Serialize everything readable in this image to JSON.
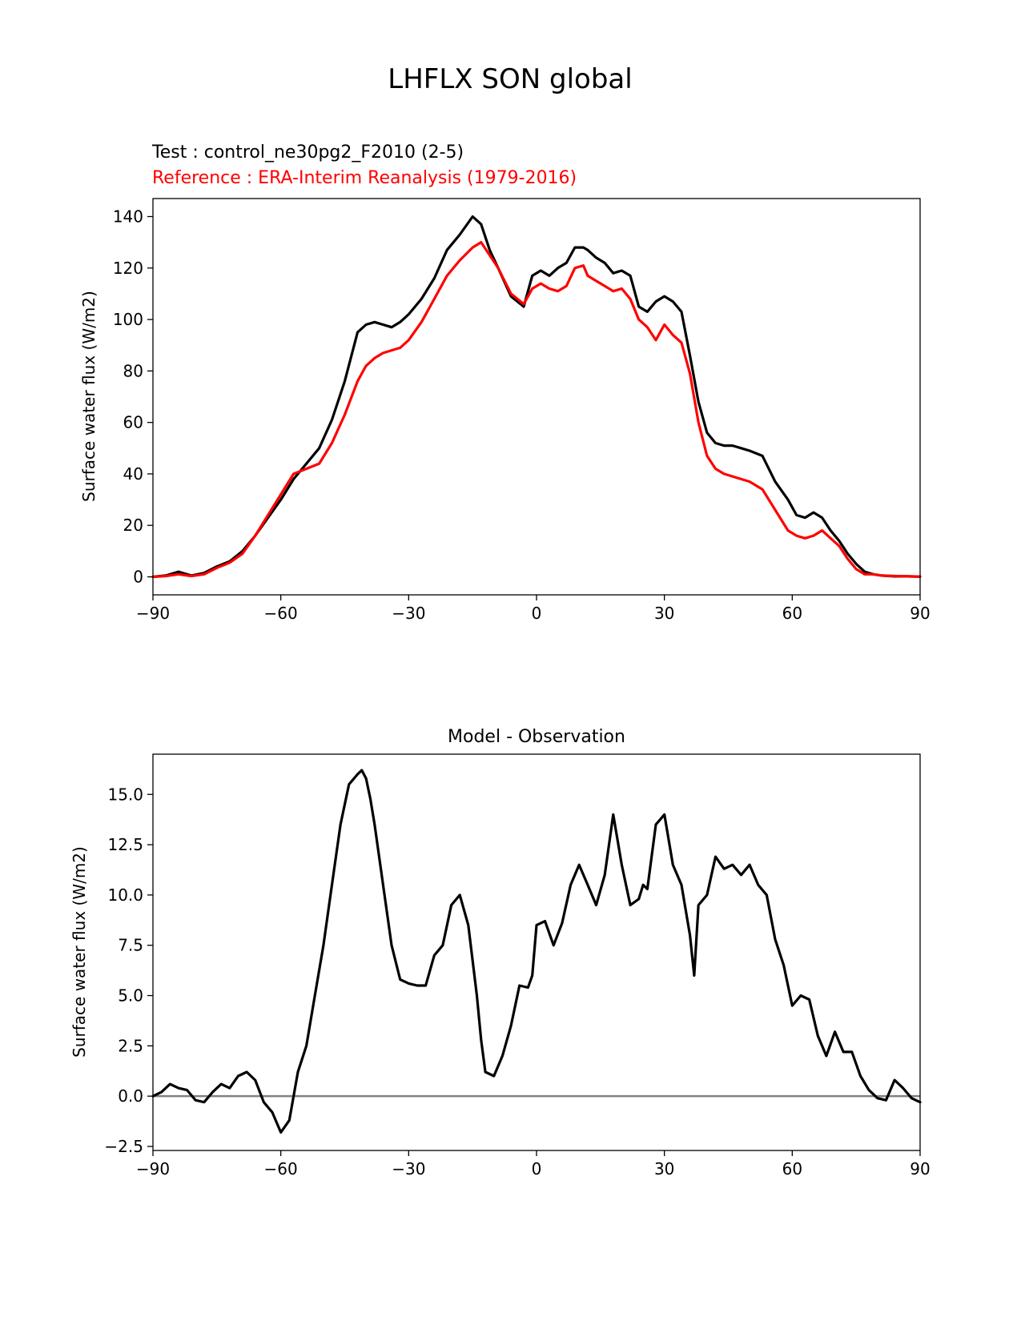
{
  "figure_title": "LHFLX SON global",
  "colors": {
    "test": "#000000",
    "reference": "#ff0000",
    "zero_line": "#808080"
  },
  "chart_data": [
    {
      "type": "line",
      "test_label": "Test : control_ne30pg2_F2010 (2-5)",
      "reference_label": "Reference : ERA-Interim Reanalysis (1979-2016)",
      "xlabel": "",
      "ylabel": "Surface water flux (W/m2)",
      "xlim": [
        -90,
        90
      ],
      "ylim": [
        -7,
        147
      ],
      "xticks": [
        -90,
        -60,
        -30,
        0,
        30,
        60,
        90
      ],
      "xtick_labels": [
        "−90",
        "−60",
        "−30",
        "0",
        "30",
        "60",
        "90"
      ],
      "yticks": [
        0,
        20,
        40,
        60,
        80,
        100,
        120,
        140
      ],
      "ytick_labels": [
        "0",
        "20",
        "40",
        "60",
        "80",
        "100",
        "120",
        "140"
      ],
      "series": [
        {
          "name": "Test",
          "color": "#000000",
          "x": [
            -90,
            -87,
            -84,
            -81,
            -78,
            -75,
            -72,
            -69,
            -66,
            -63,
            -60,
            -57,
            -54,
            -51,
            -48,
            -45,
            -42,
            -40,
            -38,
            -36,
            -34,
            -32,
            -30,
            -27,
            -24,
            -21,
            -18,
            -15,
            -13,
            -11,
            -9,
            -6,
            -3,
            -1,
            1,
            3,
            5,
            7,
            9,
            11,
            12,
            14,
            16,
            18,
            20,
            22,
            24,
            26,
            28,
            30,
            32,
            34,
            36,
            38,
            40,
            42,
            44,
            46,
            48,
            50,
            53,
            56,
            59,
            61,
            63,
            65,
            67,
            69,
            71,
            73,
            75,
            77,
            79,
            81,
            84,
            87,
            90
          ],
          "values": [
            0,
            0.5,
            2,
            0.5,
            1.5,
            4,
            6,
            10,
            16,
            23,
            30,
            38,
            44,
            50,
            61,
            76,
            95,
            98,
            99,
            98,
            97,
            99,
            102,
            108,
            116,
            127,
            133,
            140,
            137,
            127,
            120,
            109,
            105,
            117,
            119,
            117,
            120,
            122,
            128,
            128,
            127,
            124,
            122,
            118,
            119,
            117,
            105,
            103,
            107,
            109,
            107,
            103,
            86,
            68,
            56,
            52,
            51,
            51,
            50,
            49,
            47,
            37,
            30,
            24,
            23,
            25,
            23,
            18,
            14,
            9,
            5,
            2,
            1,
            0.5,
            0.2,
            0.2,
            0.1
          ]
        },
        {
          "name": "Reference",
          "color": "#ff0000",
          "x": [
            -90,
            -87,
            -84,
            -81,
            -78,
            -75,
            -72,
            -69,
            -66,
            -63,
            -60,
            -57,
            -54,
            -51,
            -48,
            -45,
            -42,
            -40,
            -38,
            -36,
            -34,
            -32,
            -30,
            -27,
            -24,
            -21,
            -18,
            -15,
            -13,
            -11,
            -9,
            -6,
            -3,
            -1,
            1,
            3,
            5,
            7,
            9,
            11,
            12,
            14,
            16,
            18,
            20,
            22,
            24,
            26,
            28,
            30,
            32,
            34,
            36,
            38,
            40,
            42,
            44,
            46,
            48,
            50,
            53,
            56,
            59,
            61,
            63,
            65,
            67,
            69,
            71,
            73,
            75,
            77,
            79,
            81,
            84,
            87,
            90
          ],
          "values": [
            0,
            0.3,
            1,
            0.3,
            1,
            3.5,
            5.5,
            9,
            16,
            24,
            32,
            40,
            42,
            44,
            52,
            63,
            76,
            82,
            85,
            87,
            88,
            89,
            92,
            99,
            108,
            117,
            123,
            128,
            130,
            125,
            120,
            110,
            106,
            112,
            114,
            112,
            111,
            113,
            120,
            121,
            117,
            115,
            113,
            111,
            112,
            108,
            100,
            97,
            92,
            98,
            94,
            91,
            79,
            60,
            47,
            42,
            40,
            39,
            38,
            37,
            34,
            26,
            18,
            16,
            15,
            16,
            18,
            15,
            12,
            7,
            3,
            1,
            1,
            0.5,
            0.3,
            0.2,
            0.1
          ]
        }
      ]
    },
    {
      "type": "line",
      "title": "Model - Observation",
      "xlabel": "",
      "ylabel": "Surface water flux (W/m2)",
      "xlim": [
        -90,
        90
      ],
      "ylim": [
        -2.7,
        17.0
      ],
      "xticks": [
        -90,
        -60,
        -30,
        0,
        30,
        60,
        90
      ],
      "xtick_labels": [
        "−90",
        "−60",
        "−30",
        "0",
        "30",
        "60",
        "90"
      ],
      "yticks": [
        -2.5,
        0.0,
        2.5,
        5.0,
        7.5,
        10.0,
        12.5,
        15.0
      ],
      "ytick_labels": [
        "−2.5",
        "0.0",
        "2.5",
        "5.0",
        "7.5",
        "10.0",
        "12.5",
        "15.0"
      ],
      "zero_line": true,
      "series": [
        {
          "name": "Model - Observation",
          "color": "#000000",
          "x": [
            -90,
            -88,
            -86,
            -84,
            -82,
            -80,
            -78,
            -76,
            -74,
            -72,
            -70,
            -68,
            -66,
            -64,
            -62,
            -60,
            -58,
            -56,
            -54,
            -52,
            -50,
            -48,
            -46,
            -44,
            -42,
            -41,
            -40,
            -39,
            -38,
            -36,
            -34,
            -32,
            -30,
            -28,
            -26,
            -24,
            -22,
            -20,
            -18,
            -16,
            -14,
            -13,
            -12,
            -10,
            -8,
            -6,
            -4,
            -2,
            -1,
            0,
            2,
            4,
            6,
            8,
            10,
            12,
            14,
            16,
            18,
            20,
            22,
            24,
            25,
            26,
            28,
            30,
            32,
            34,
            36,
            37,
            38,
            40,
            42,
            44,
            46,
            48,
            50,
            52,
            54,
            56,
            58,
            60,
            62,
            64,
            66,
            68,
            70,
            72,
            74,
            76,
            78,
            80,
            82,
            84,
            86,
            88,
            90
          ],
          "values": [
            0,
            0.2,
            0.6,
            0.4,
            0.3,
            -0.2,
            -0.3,
            0.2,
            0.6,
            0.4,
            1.0,
            1.2,
            0.8,
            -0.3,
            -0.8,
            -1.8,
            -1.2,
            1.2,
            2.5,
            5.0,
            7.5,
            10.5,
            13.5,
            15.5,
            16.0,
            16.2,
            15.8,
            14.8,
            13.5,
            10.5,
            7.5,
            5.8,
            5.6,
            5.5,
            5.5,
            7.0,
            7.5,
            9.5,
            10.0,
            8.5,
            5.0,
            2.8,
            1.2,
            1.0,
            2.0,
            3.5,
            5.5,
            5.4,
            6.0,
            8.5,
            8.7,
            7.5,
            8.6,
            10.5,
            11.5,
            10.5,
            9.5,
            11.0,
            14.0,
            11.5,
            9.5,
            9.8,
            10.5,
            10.3,
            13.5,
            14.0,
            11.5,
            10.5,
            8.0,
            6.0,
            9.5,
            10.0,
            11.9,
            11.3,
            11.5,
            11.0,
            11.5,
            10.5,
            10.0,
            7.8,
            6.5,
            4.5,
            5.0,
            4.8,
            3.0,
            2.0,
            3.2,
            2.2,
            2.2,
            1.0,
            0.3,
            -0.1,
            -0.2,
            0.8,
            0.4,
            -0.1,
            -0.3
          ]
        }
      ]
    }
  ]
}
